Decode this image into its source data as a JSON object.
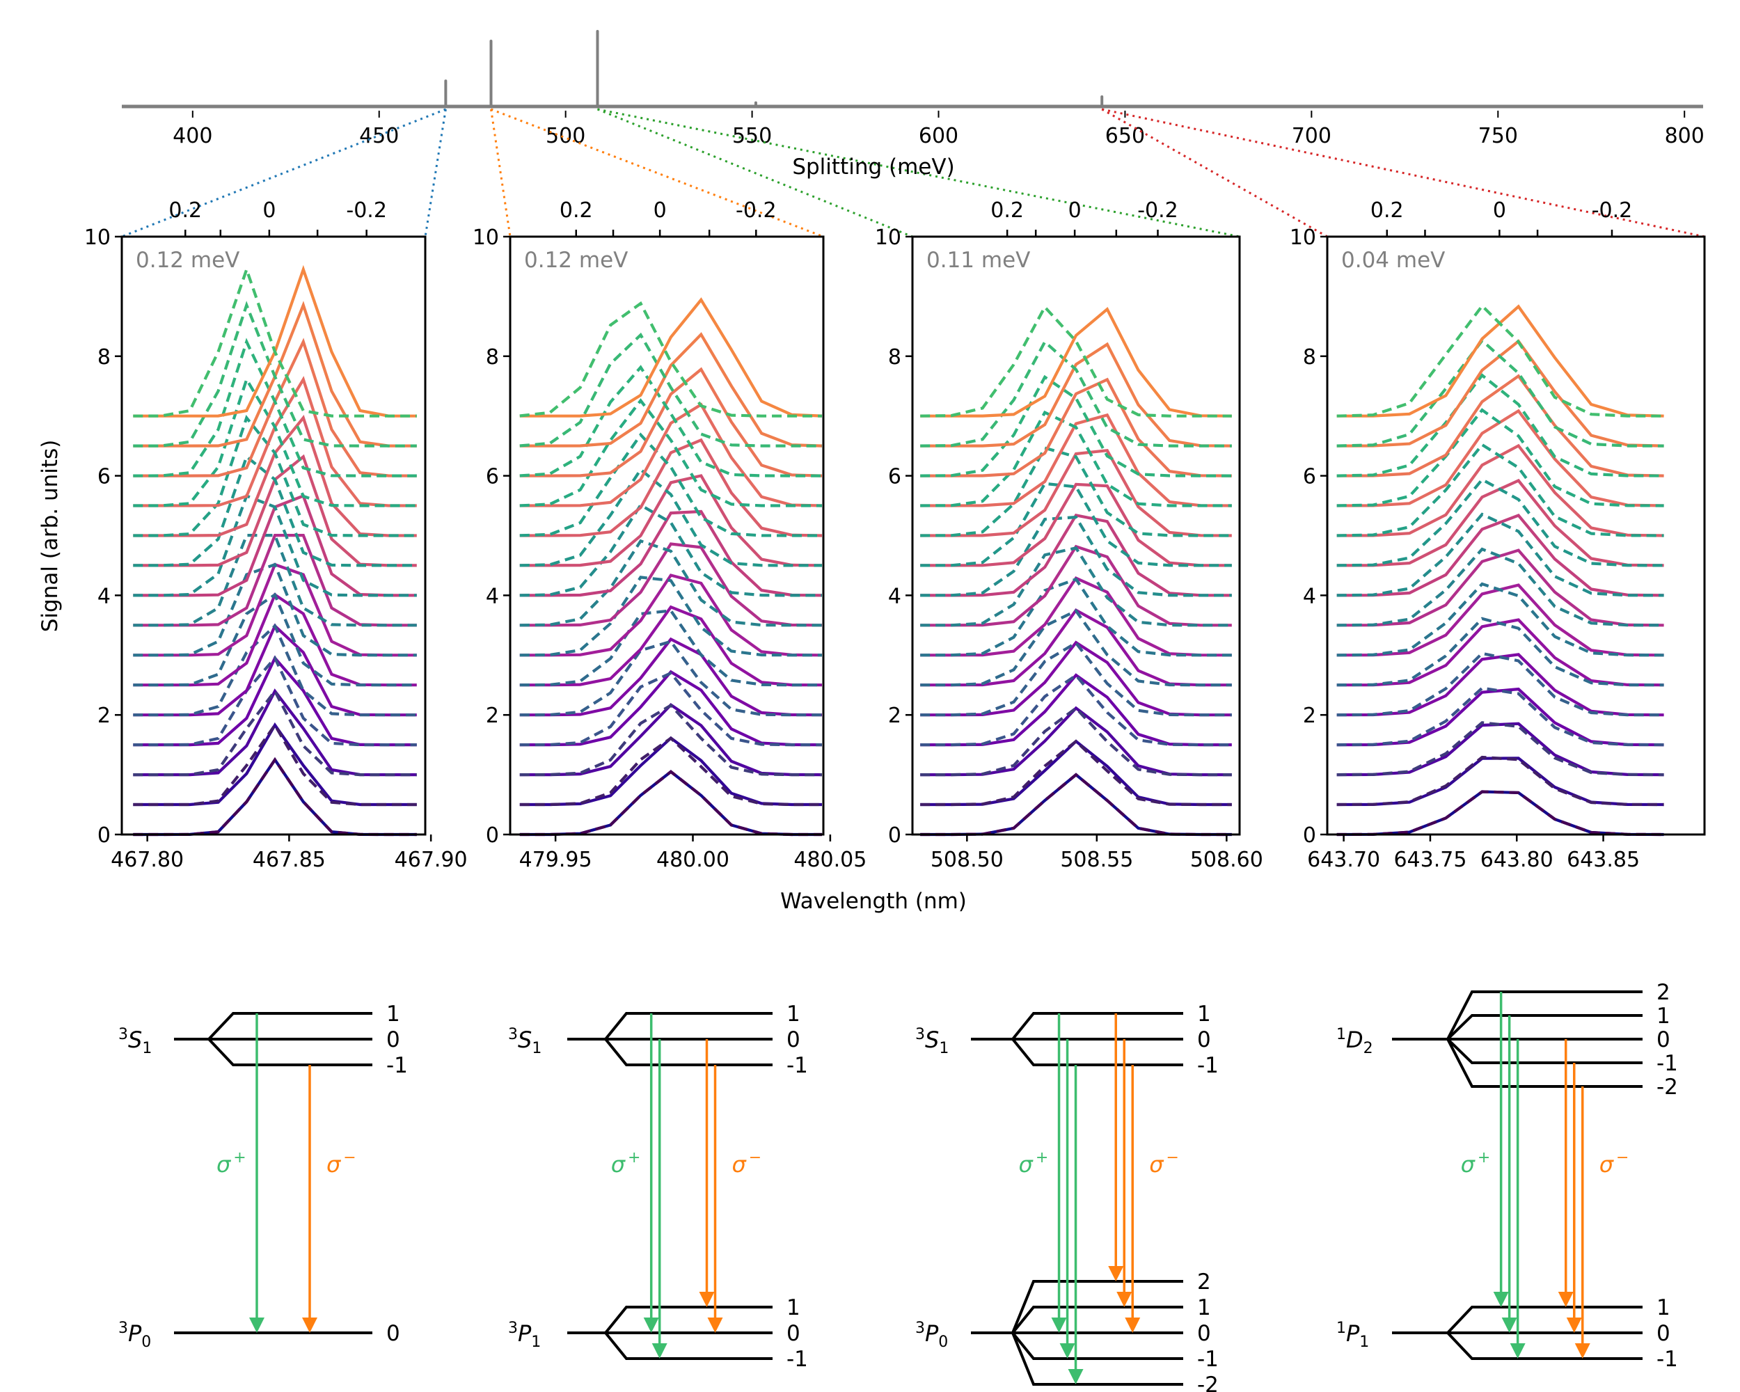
{
  "colors": {
    "overview_line": "#7f7f7f",
    "axis": "#000000",
    "annotation_text": "#808080",
    "sigma_plus": "#3dbd6e",
    "sigma_minus": "#ff7f0e",
    "level": "#000000",
    "zoom_connectors": [
      "#1f77b4",
      "#ff7f0e",
      "#2ca02c",
      "#d62728"
    ]
  },
  "chart_data": [
    {
      "id": "overview",
      "type": "line",
      "title": "",
      "xlabel": "Splitting (meV)",
      "ylabel": "",
      "xlim": [
        381,
        805
      ],
      "ylim": [
        0,
        1
      ],
      "grid": false,
      "xticks": [
        400,
        450,
        500,
        550,
        600,
        650,
        700,
        750,
        800
      ],
      "xtick_labels": [
        "400",
        "450",
        "500",
        "550",
        "600",
        "650",
        "700",
        "750",
        "800"
      ],
      "peaks": [
        {
          "x": 467.85,
          "height": 0.34
        },
        {
          "x": 480.0,
          "height": 0.87
        },
        {
          "x": 508.55,
          "height": 1.0
        },
        {
          "x": 551.0,
          "height": 0.05
        },
        {
          "x": 643.8,
          "height": 0.13
        }
      ],
      "zoom_links": [
        {
          "peak_x": 467.85,
          "panel": 0
        },
        {
          "peak_x": 480.0,
          "panel": 1
        },
        {
          "peak_x": 508.55,
          "panel": 2
        },
        {
          "peak_x": 643.8,
          "panel": 3
        }
      ]
    },
    {
      "id": "panel-1",
      "type": "line",
      "annotation": "0.12 meV",
      "xlabel": "",
      "ylabel": "Signal (arb. units)",
      "xlim": [
        467.791,
        467.898
      ],
      "ylim": [
        0,
        10
      ],
      "xticks": [
        467.8,
        467.85,
        467.9
      ],
      "xtick_labels": [
        "467.80",
        "467.85",
        "467.90"
      ],
      "yticks": [
        0,
        2,
        4,
        6,
        8,
        10
      ],
      "ytick_labels": [
        "0",
        "2",
        "4",
        "6",
        "8",
        "10"
      ],
      "top_xticks": [
        467.8134,
        467.8258,
        467.843,
        467.86,
        467.8773
      ],
      "top_xtick_labels": [
        "0.2",
        "",
        "0",
        "",
        "-0.2"
      ],
      "x": [
        467.795,
        467.805,
        467.815,
        467.825,
        467.835,
        467.845,
        467.855,
        467.865,
        467.875,
        467.885,
        467.895
      ],
      "n_traces": 15,
      "offset_step": 0.5,
      "sigma_plus_center_start": 467.845,
      "sigma_plus_center_end": 467.835,
      "sigma_minus_center_start": 467.845,
      "sigma_minus_center_end": 467.855,
      "amp_start": 1.25,
      "amp_end": 2.45,
      "width": 0.011
    },
    {
      "id": "panel-2",
      "type": "line",
      "annotation": "0.12 meV",
      "xlim": [
        479.9335,
        480.0475
      ],
      "ylim": [
        0,
        10
      ],
      "xticks": [
        479.95,
        480.0,
        480.05
      ],
      "xtick_labels": [
        "479.95",
        "480.00",
        "480.05"
      ],
      "yticks": [
        0,
        2,
        4,
        6,
        8,
        10
      ],
      "ytick_labels": [
        "0",
        "2",
        "4",
        "6",
        "8",
        "10"
      ],
      "top_xticks": [
        479.9575,
        479.971,
        479.988,
        480.006,
        480.023
      ],
      "top_xtick_labels": [
        "0.2",
        "",
        "0",
        "",
        "-0.2"
      ],
      "x": [
        479.937,
        479.948,
        479.959,
        479.97,
        479.981,
        479.992,
        480.003,
        480.014,
        480.025,
        480.036,
        480.047
      ],
      "n_traces": 15,
      "offset_step": 0.5,
      "sigma_plus_center_start": 479.992,
      "sigma_plus_center_end": 479.978,
      "sigma_minus_center_start": 479.992,
      "sigma_minus_center_end": 480.002,
      "amp_start": 1.05,
      "amp_end": 1.95,
      "width": 0.016
    },
    {
      "id": "panel-3",
      "type": "line",
      "annotation": "0.11 meV",
      "xlim": [
        508.479,
        508.605
      ],
      "ylim": [
        0,
        10
      ],
      "xticks": [
        508.5,
        508.55,
        508.6
      ],
      "xtick_labels": [
        "508.50",
        "508.55",
        "508.60"
      ],
      "yticks": [
        0,
        2,
        4,
        6,
        8,
        10
      ],
      "ytick_labels": [
        "0",
        "2",
        "4",
        "6",
        "8",
        "10"
      ],
      "top_xticks": [
        508.5155,
        508.5265,
        508.5415,
        508.5575,
        508.5735
      ],
      "top_xtick_labels": [
        "0.2",
        "",
        "0",
        "",
        "-0.2"
      ],
      "x": [
        508.482,
        508.494,
        508.506,
        508.518,
        508.53,
        508.542,
        508.554,
        508.566,
        508.578,
        508.59,
        508.602
      ],
      "n_traces": 15,
      "offset_step": 0.5,
      "sigma_plus_center_start": 508.542,
      "sigma_plus_center_end": 508.532,
      "sigma_minus_center_start": 508.542,
      "sigma_minus_center_end": 508.551,
      "amp_start": 1.0,
      "amp_end": 1.85,
      "width": 0.016
    },
    {
      "id": "panel-4",
      "type": "line",
      "annotation": "0.04 meV",
      "xlim": [
        643.6905,
        643.9085
      ],
      "ylim": [
        0,
        10
      ],
      "xticks": [
        643.7,
        643.75,
        643.8,
        643.85
      ],
      "xtick_labels": [
        "643.70",
        "643.75",
        "643.80",
        "643.85"
      ],
      "yticks": [
        0,
        2,
        4,
        6,
        8,
        10
      ],
      "ytick_labels": [
        "0",
        "2",
        "4",
        "6",
        "8",
        "10"
      ],
      "top_xticks": [
        643.725,
        643.747,
        643.79,
        643.812,
        643.855
      ],
      "top_xtick_labels": [
        "0.2",
        "",
        "0",
        "",
        "-0.2"
      ],
      "x": [
        643.696,
        643.717,
        643.738,
        643.759,
        643.78,
        643.801,
        643.822,
        643.843,
        643.864,
        643.885
      ],
      "n_traces": 15,
      "offset_step": 0.5,
      "sigma_plus_center_start": 643.79,
      "sigma_plus_center_end": 643.782,
      "sigma_minus_center_start": 643.79,
      "sigma_minus_center_end": 643.798,
      "amp_start": 0.8,
      "amp_end": 1.85,
      "width": 0.03
    }
  ],
  "shared_labels": {
    "xlabel": "Wavelength (nm)",
    "ylabel": "Signal (arb. units)",
    "top_axis_label": "Splitting (meV)"
  },
  "diagrams": [
    {
      "upper": {
        "term_sup": "3",
        "term": "S",
        "term_sub": "1",
        "levels": [
          "1",
          "0",
          "-1"
        ]
      },
      "lower": {
        "term_sup": "3",
        "term": "P",
        "term_sub": "0",
        "levels": [
          "0"
        ]
      },
      "sigma_plus_label": "σ",
      "sigma_plus_sup": "+",
      "sigma_minus_label": "σ",
      "sigma_minus_sup": "−",
      "sigma_plus": [
        [
          1,
          0
        ]
      ],
      "sigma_minus": [
        [
          -1,
          0
        ]
      ]
    },
    {
      "upper": {
        "term_sup": "3",
        "term": "S",
        "term_sub": "1",
        "levels": [
          "1",
          "0",
          "-1"
        ]
      },
      "lower": {
        "term_sup": "3",
        "term": "P",
        "term_sub": "1",
        "levels": [
          "1",
          "0",
          "-1"
        ]
      },
      "sigma_plus_label": "σ",
      "sigma_plus_sup": "+",
      "sigma_minus_label": "σ",
      "sigma_minus_sup": "−",
      "sigma_plus": [
        [
          1,
          0
        ],
        [
          0,
          -1
        ]
      ],
      "sigma_minus": [
        [
          0,
          1
        ],
        [
          -1,
          0
        ]
      ]
    },
    {
      "upper": {
        "term_sup": "3",
        "term": "S",
        "term_sub": "1",
        "levels": [
          "1",
          "0",
          "-1"
        ]
      },
      "lower": {
        "term_sup": "3",
        "term": "P",
        "term_sub": "0",
        "levels": [
          "2",
          "1",
          "0",
          "-1",
          "-2"
        ]
      },
      "sigma_plus_label": "σ",
      "sigma_plus_sup": "+",
      "sigma_minus_label": "σ",
      "sigma_minus_sup": "−",
      "sigma_plus": [
        [
          1,
          0
        ],
        [
          0,
          -1
        ],
        [
          -1,
          -2
        ]
      ],
      "sigma_minus": [
        [
          1,
          2
        ],
        [
          0,
          1
        ],
        [
          -1,
          0
        ]
      ]
    },
    {
      "upper": {
        "term_sup": "1",
        "term": "D",
        "term_sub": "2",
        "levels": [
          "2",
          "1",
          "0",
          "-1",
          "-2"
        ]
      },
      "lower": {
        "term_sup": "1",
        "term": "P",
        "term_sub": "1",
        "levels": [
          "1",
          "0",
          "-1"
        ]
      },
      "sigma_plus_label": "σ",
      "sigma_plus_sup": "+",
      "sigma_minus_label": "σ",
      "sigma_minus_sup": "−",
      "sigma_plus": [
        [
          2,
          1
        ],
        [
          1,
          0
        ],
        [
          0,
          -1
        ]
      ],
      "sigma_minus": [
        [
          0,
          1
        ],
        [
          -1,
          0
        ],
        [
          -2,
          -1
        ]
      ]
    }
  ]
}
